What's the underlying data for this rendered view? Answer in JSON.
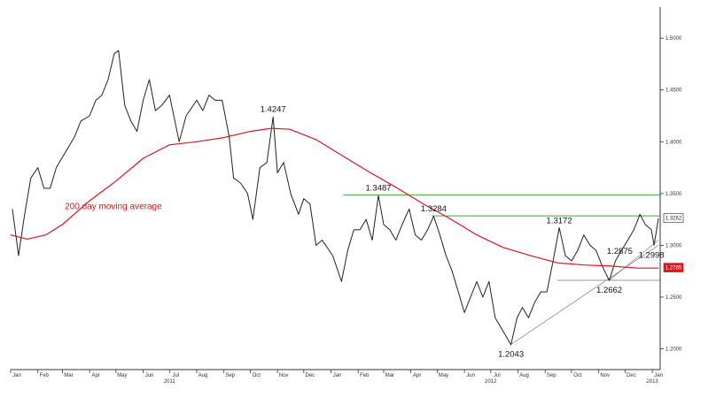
{
  "chart_data": {
    "type": "line",
    "title": "",
    "xlabel": "",
    "ylabel": "",
    "ylim": [
      1.18,
      1.53
    ],
    "x_range": [
      "2011-01-01",
      "2013-01-10"
    ],
    "y_ticks": [
      "1.2000",
      "1.2500",
      "1.3000",
      "1.3500",
      "1.4000",
      "1.4500",
      "1.5000"
    ],
    "x_ticks": [
      {
        "label": "Jan",
        "date": "2011-01-01"
      },
      {
        "label": "Feb",
        "date": "2011-02-01"
      },
      {
        "label": "Mar",
        "date": "2011-03-01"
      },
      {
        "label": "Apr",
        "date": "2011-04-01"
      },
      {
        "label": "May",
        "date": "2011-05-01"
      },
      {
        "label": "Jun",
        "date": "2011-06-01"
      },
      {
        "label": "Jul",
        "date": "2011-07-01"
      },
      {
        "label": "Aug",
        "date": "2011-08-01"
      },
      {
        "label": "Sep",
        "date": "2011-09-01"
      },
      {
        "label": "Oct",
        "date": "2011-10-01"
      },
      {
        "label": "Nov",
        "date": "2011-11-01"
      },
      {
        "label": "Dec",
        "date": "2011-12-01"
      },
      {
        "label": "Jan",
        "date": "2012-01-01"
      },
      {
        "label": "Feb",
        "date": "2012-02-01"
      },
      {
        "label": "Mar",
        "date": "2012-03-01"
      },
      {
        "label": "Apr",
        "date": "2012-04-01"
      },
      {
        "label": "May",
        "date": "2012-05-01"
      },
      {
        "label": "Jun",
        "date": "2012-06-01"
      },
      {
        "label": "Jul",
        "date": "2012-07-01"
      },
      {
        "label": "Aug",
        "date": "2012-08-01"
      },
      {
        "label": "Sep",
        "date": "2012-09-01"
      },
      {
        "label": "Oct",
        "date": "2012-10-01"
      },
      {
        "label": "Nov",
        "date": "2012-11-01"
      },
      {
        "label": "Dec",
        "date": "2012-12-01"
      },
      {
        "label": "Jan",
        "date": "2013-01-01"
      }
    ],
    "year_labels": [
      {
        "label": "2011",
        "date": "2011-07-01"
      },
      {
        "label": "2012",
        "date": "2012-07-01"
      },
      {
        "label": "2013",
        "date": "2013-01-01"
      }
    ],
    "series": [
      {
        "kind": "price",
        "color": "#222222",
        "points": [
          [
            "2011-01-03",
            1.335
          ],
          [
            "2011-01-10",
            1.29
          ],
          [
            "2011-01-17",
            1.33
          ],
          [
            "2011-01-24",
            1.365
          ],
          [
            "2011-02-01",
            1.375
          ],
          [
            "2011-02-08",
            1.355
          ],
          [
            "2011-02-15",
            1.355
          ],
          [
            "2011-02-22",
            1.375
          ],
          [
            "2011-03-01",
            1.385
          ],
          [
            "2011-03-08",
            1.395
          ],
          [
            "2011-03-15",
            1.405
          ],
          [
            "2011-03-22",
            1.42
          ],
          [
            "2011-04-01",
            1.425
          ],
          [
            "2011-04-08",
            1.44
          ],
          [
            "2011-04-15",
            1.445
          ],
          [
            "2011-04-22",
            1.46
          ],
          [
            "2011-04-29",
            1.485
          ],
          [
            "2011-05-04",
            1.488
          ],
          [
            "2011-05-11",
            1.435
          ],
          [
            "2011-05-18",
            1.42
          ],
          [
            "2011-05-25",
            1.41
          ],
          [
            "2011-06-01",
            1.44
          ],
          [
            "2011-06-08",
            1.46
          ],
          [
            "2011-06-15",
            1.43
          ],
          [
            "2011-06-22",
            1.435
          ],
          [
            "2011-07-01",
            1.445
          ],
          [
            "2011-07-12",
            1.4
          ],
          [
            "2011-07-20",
            1.425
          ],
          [
            "2011-08-01",
            1.44
          ],
          [
            "2011-08-08",
            1.43
          ],
          [
            "2011-08-15",
            1.445
          ],
          [
            "2011-08-22",
            1.44
          ],
          [
            "2011-08-30",
            1.44
          ],
          [
            "2011-09-07",
            1.405
          ],
          [
            "2011-09-12",
            1.365
          ],
          [
            "2011-09-20",
            1.36
          ],
          [
            "2011-09-28",
            1.35
          ],
          [
            "2011-10-04",
            1.325
          ],
          [
            "2011-10-12",
            1.375
          ],
          [
            "2011-10-20",
            1.38
          ],
          [
            "2011-10-27",
            1.424
          ],
          [
            "2011-11-01",
            1.37
          ],
          [
            "2011-11-08",
            1.38
          ],
          [
            "2011-11-16",
            1.35
          ],
          [
            "2011-11-25",
            1.33
          ],
          [
            "2011-12-01",
            1.345
          ],
          [
            "2011-12-08",
            1.34
          ],
          [
            "2011-12-15",
            1.3
          ],
          [
            "2011-12-22",
            1.305
          ],
          [
            "2012-01-03",
            1.29
          ],
          [
            "2012-01-13",
            1.265
          ],
          [
            "2012-01-20",
            1.295
          ],
          [
            "2012-01-27",
            1.315
          ],
          [
            "2012-02-03",
            1.315
          ],
          [
            "2012-02-10",
            1.325
          ],
          [
            "2012-02-17",
            1.305
          ],
          [
            "2012-02-24",
            1.348
          ],
          [
            "2012-03-01",
            1.32
          ],
          [
            "2012-03-08",
            1.315
          ],
          [
            "2012-03-15",
            1.305
          ],
          [
            "2012-03-22",
            1.32
          ],
          [
            "2012-03-30",
            1.335
          ],
          [
            "2012-04-06",
            1.31
          ],
          [
            "2012-04-13",
            1.305
          ],
          [
            "2012-04-20",
            1.315
          ],
          [
            "2012-04-27",
            1.328
          ],
          [
            "2012-05-04",
            1.31
          ],
          [
            "2012-05-11",
            1.29
          ],
          [
            "2012-05-18",
            1.275
          ],
          [
            "2012-05-25",
            1.255
          ],
          [
            "2012-06-01",
            1.235
          ],
          [
            "2012-06-08",
            1.25
          ],
          [
            "2012-06-15",
            1.265
          ],
          [
            "2012-06-22",
            1.25
          ],
          [
            "2012-06-29",
            1.265
          ],
          [
            "2012-07-06",
            1.23
          ],
          [
            "2012-07-13",
            1.22
          ],
          [
            "2012-07-24",
            1.204
          ],
          [
            "2012-07-31",
            1.23
          ],
          [
            "2012-08-06",
            1.24
          ],
          [
            "2012-08-13",
            1.23
          ],
          [
            "2012-08-20",
            1.245
          ],
          [
            "2012-08-27",
            1.255
          ],
          [
            "2012-09-03",
            1.255
          ],
          [
            "2012-09-10",
            1.285
          ],
          [
            "2012-09-17",
            1.317
          ],
          [
            "2012-09-24",
            1.29
          ],
          [
            "2012-10-01",
            1.285
          ],
          [
            "2012-10-08",
            1.295
          ],
          [
            "2012-10-15",
            1.31
          ],
          [
            "2012-10-22",
            1.3
          ],
          [
            "2012-10-29",
            1.295
          ],
          [
            "2012-11-05",
            1.28
          ],
          [
            "2012-11-13",
            1.266
          ],
          [
            "2012-11-20",
            1.285
          ],
          [
            "2012-11-27",
            1.295
          ],
          [
            "2012-12-04",
            1.305
          ],
          [
            "2012-12-11",
            1.315
          ],
          [
            "2012-12-18",
            1.33
          ],
          [
            "2012-12-24",
            1.32
          ],
          [
            "2012-12-31",
            1.315
          ],
          [
            "2013-01-03",
            1.3
          ],
          [
            "2013-01-08",
            1.326
          ]
        ]
      },
      {
        "name": "200 day moving average",
        "kind": "moving_average",
        "color": "#e0141e",
        "points": [
          [
            "2011-01-01",
            1.31
          ],
          [
            "2011-01-20",
            1.306
          ],
          [
            "2011-02-10",
            1.31
          ],
          [
            "2011-03-01",
            1.32
          ],
          [
            "2011-04-01",
            1.343
          ],
          [
            "2011-05-01",
            1.362
          ],
          [
            "2011-06-01",
            1.384
          ],
          [
            "2011-07-01",
            1.397
          ],
          [
            "2011-08-01",
            1.4
          ],
          [
            "2011-09-01",
            1.404
          ],
          [
            "2011-10-01",
            1.41
          ],
          [
            "2011-10-25",
            1.413
          ],
          [
            "2011-11-15",
            1.412
          ],
          [
            "2011-12-15",
            1.402
          ],
          [
            "2012-01-15",
            1.386
          ],
          [
            "2012-02-15",
            1.37
          ],
          [
            "2012-03-15",
            1.356
          ],
          [
            "2012-04-15",
            1.34
          ],
          [
            "2012-05-15",
            1.326
          ],
          [
            "2012-06-15",
            1.31
          ],
          [
            "2012-07-15",
            1.298
          ],
          [
            "2012-08-15",
            1.29
          ],
          [
            "2012-09-15",
            1.283
          ],
          [
            "2012-10-15",
            1.281
          ],
          [
            "2012-11-15",
            1.28
          ],
          [
            "2012-12-15",
            1.278
          ],
          [
            "2013-01-08",
            1.278
          ]
        ]
      }
    ],
    "horizontal_lines": [
      {
        "y": 1.3487,
        "from": "2012-01-15",
        "to": "2013-01-10",
        "color": "#3aa845"
      },
      {
        "y": 1.3284,
        "from": "2012-04-25",
        "to": "2013-01-10",
        "color": "#3aa845"
      },
      {
        "y": 1.2662,
        "from": "2012-09-15",
        "to": "2013-01-10",
        "color": "#999999"
      }
    ],
    "trend_lines": [
      {
        "from": [
          "2012-07-24",
          1.2043
        ],
        "to": [
          "2013-01-08",
          1.3
        ],
        "color": "#999999"
      },
      {
        "from": [
          "2012-11-13",
          1.2662
        ],
        "to": [
          "2013-01-08",
          1.305
        ],
        "color": "#999999"
      }
    ],
    "annotations": [
      {
        "text": "1.4247",
        "date": "2011-10-27",
        "y": 1.4247
      },
      {
        "text": "1.3487",
        "date": "2012-02-24",
        "y": 1.3487
      },
      {
        "text": "1.3284",
        "date": "2012-04-27",
        "y": 1.3284
      },
      {
        "text": "1.3172",
        "date": "2012-09-17",
        "y": 1.3172
      },
      {
        "text": "1.2875",
        "date": "2012-11-25",
        "y": 1.2875
      },
      {
        "text": "1.2998",
        "date": "2012-12-31",
        "y": 1.2998
      },
      {
        "text": "1.2662",
        "date": "2012-11-13",
        "y": 1.2662
      },
      {
        "text": "1.2043",
        "date": "2012-07-24",
        "y": 1.2043
      }
    ],
    "ma_label": "200 day moving average",
    "last_price_badge": {
      "text": "1.3262",
      "value": 1.3262,
      "color": "#222222",
      "background": "#ffffff"
    },
    "ma_badge": {
      "text": "1.2785",
      "value": 1.2785,
      "color": "#ffffff",
      "background": "#e0141e"
    },
    "grid": false,
    "legend": "none"
  }
}
